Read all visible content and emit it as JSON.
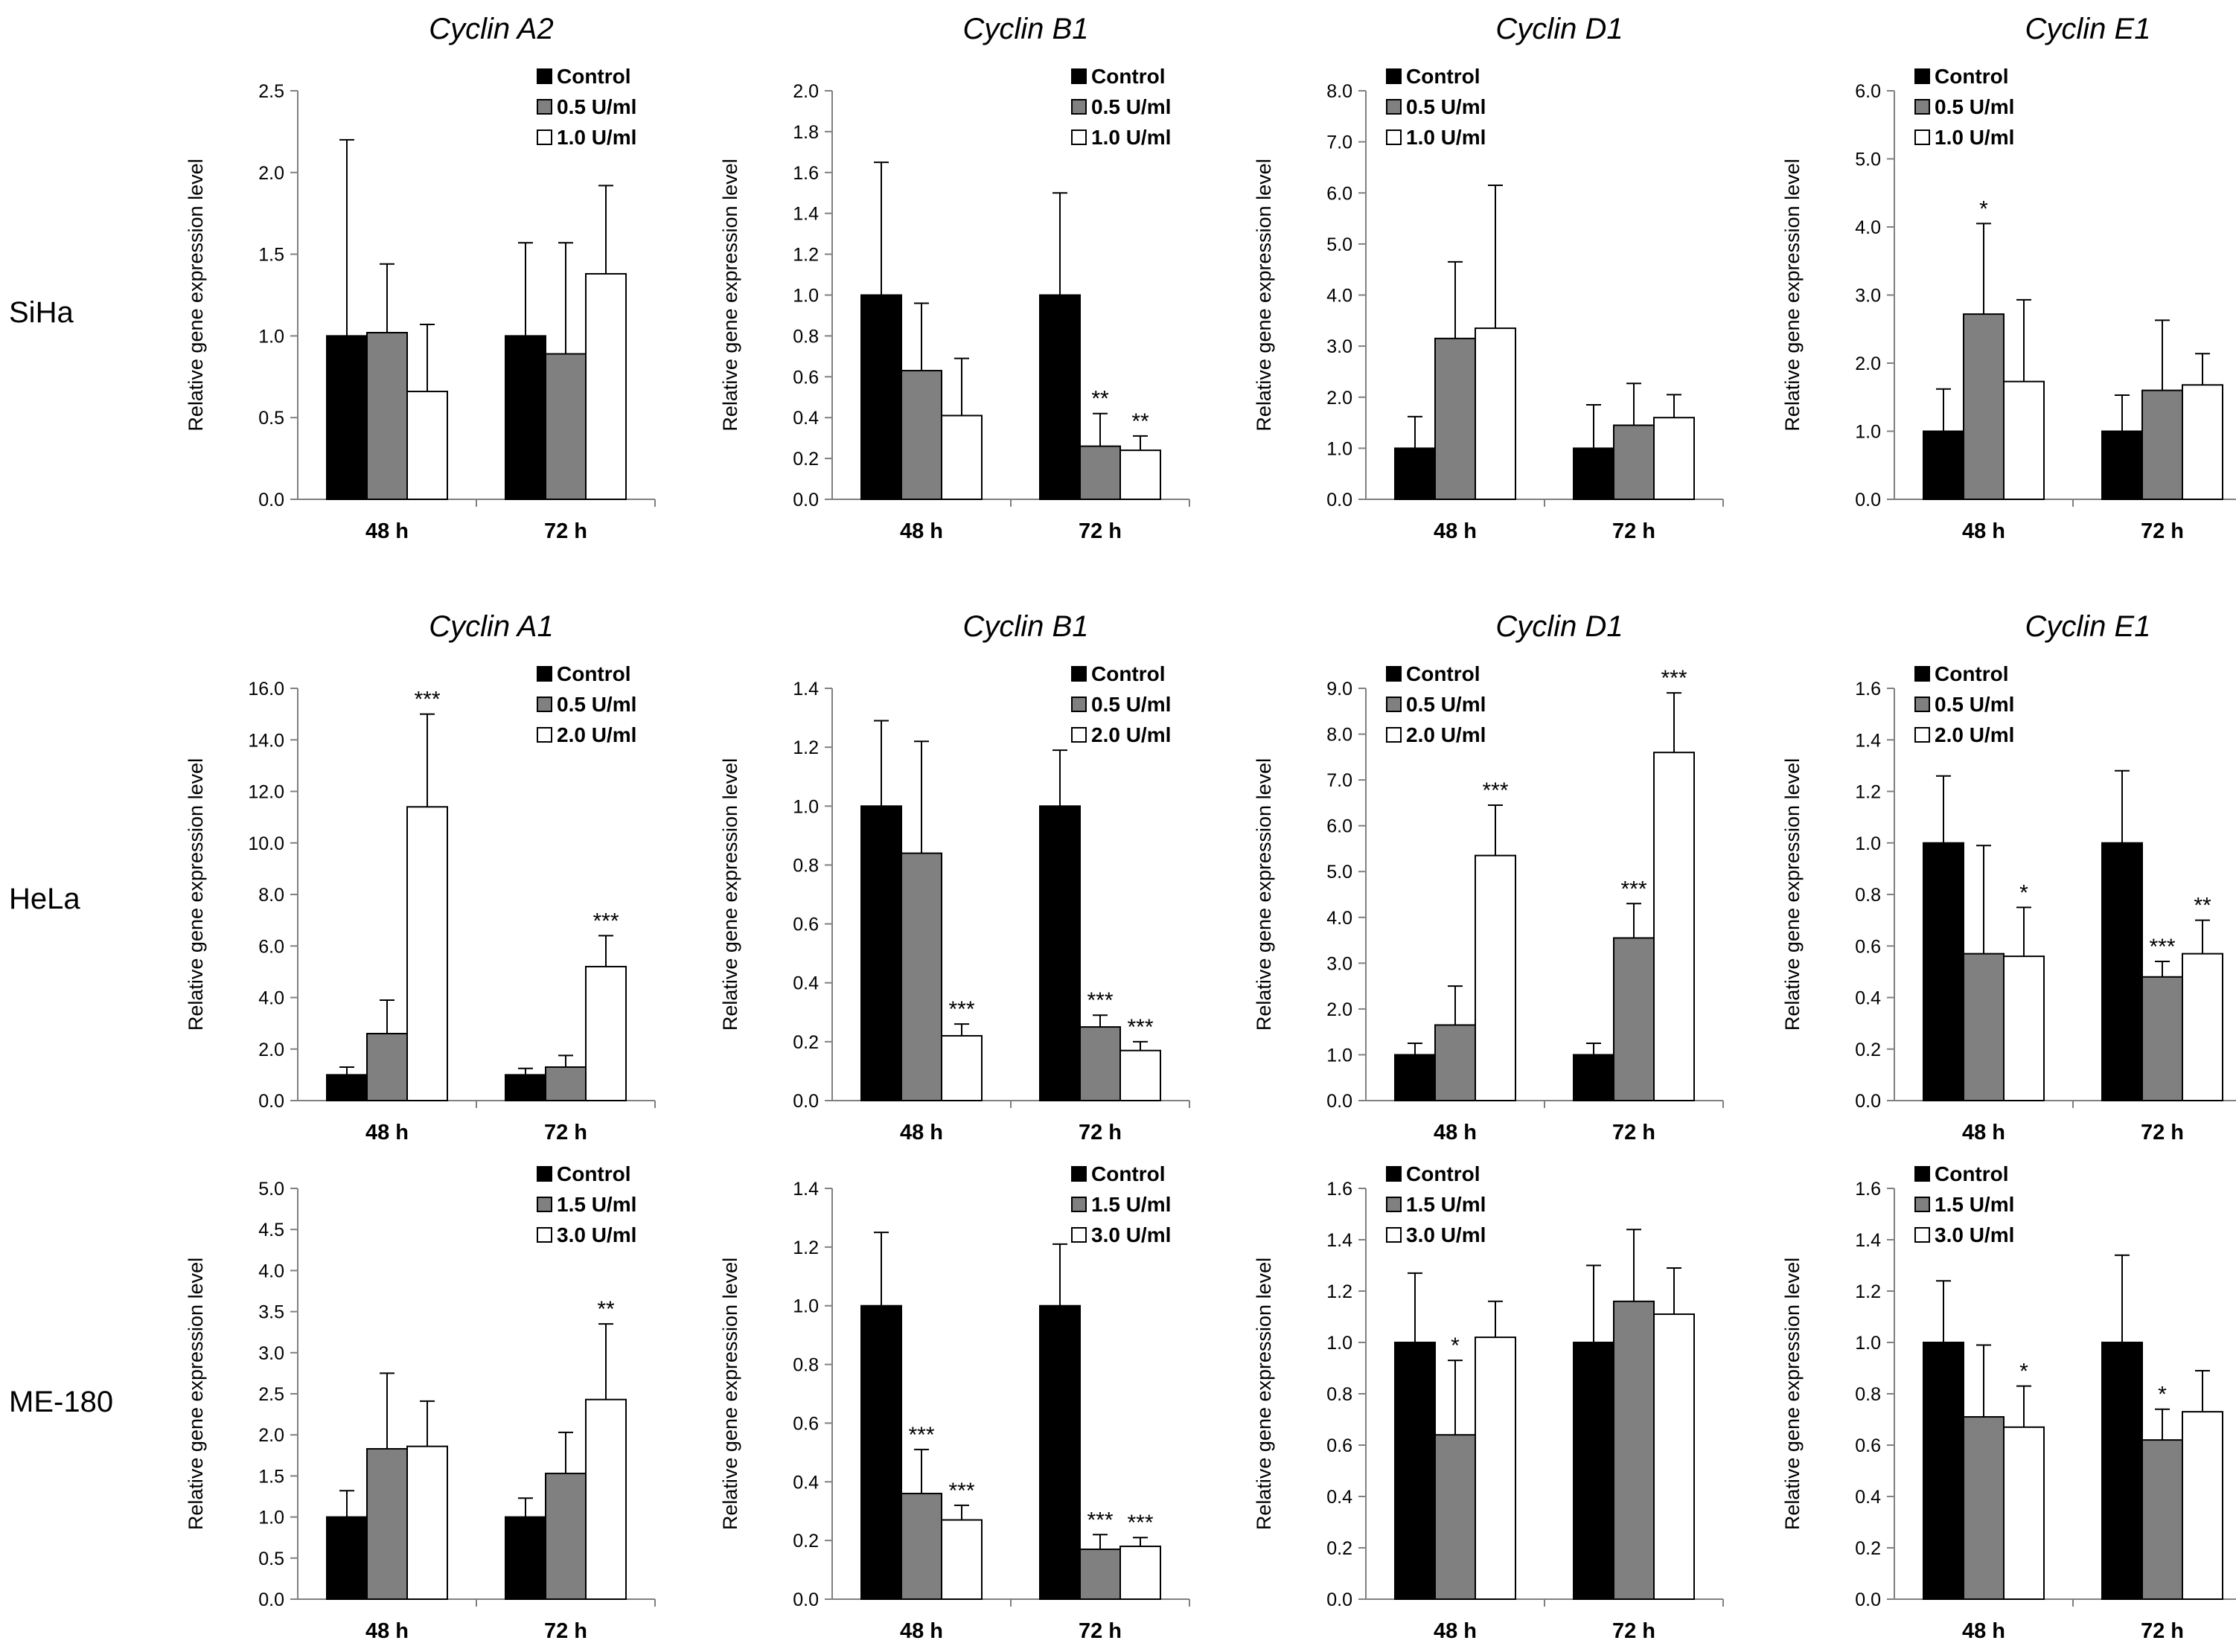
{
  "figure": {
    "ylabel": "Relative gene expression level",
    "timepoints": [
      "48 h",
      "72 h"
    ]
  },
  "row_labels": [
    "SiHa",
    "HeLa",
    "ME-180"
  ],
  "colors": {
    "control": "#000000",
    "low": "#808080",
    "high": "#ffffff",
    "edge": "#000000",
    "axis": "#808080"
  },
  "chart_data": [
    {
      "type": "bar",
      "row": "SiHa",
      "title": "Cyclin A2",
      "categories": [
        "48 h",
        "72 h"
      ],
      "ylabel": "Relative gene expression level",
      "ylim": [
        0,
        2.5
      ],
      "ytick_step": 0.5,
      "ytick_decimals": 1,
      "ytick_labels": [
        "0.0",
        "0.5",
        "1.0",
        "1.5",
        "2.0",
        "2.5"
      ],
      "series": [
        {
          "name": "Control",
          "values": [
            1.0,
            1.0
          ],
          "errors": [
            1.2,
            0.57
          ],
          "sig": [
            "",
            ""
          ]
        },
        {
          "name": "0.5 U/ml",
          "values": [
            1.02,
            0.89
          ],
          "errors": [
            0.42,
            0.68
          ],
          "sig": [
            "",
            ""
          ]
        },
        {
          "name": "1.0 U/ml",
          "values": [
            0.66,
            1.38
          ],
          "errors": [
            0.41,
            0.54
          ],
          "sig": [
            "",
            ""
          ]
        }
      ]
    },
    {
      "type": "bar",
      "row": "SiHa",
      "title": "Cyclin B1",
      "categories": [
        "48 h",
        "72 h"
      ],
      "ylabel": "Relative gene expression level",
      "ylim": [
        0,
        2.0
      ],
      "ytick_step": 0.2,
      "ytick_decimals": 1,
      "ytick_labels": [
        "0.0",
        "0.2",
        "0.4",
        "0.6",
        "0.8",
        "1.0",
        "1.2",
        "1.4",
        "1.6",
        "1.8",
        "2.0"
      ],
      "series": [
        {
          "name": "Control",
          "values": [
            1.0,
            1.0
          ],
          "errors": [
            0.65,
            0.5
          ],
          "sig": [
            "",
            ""
          ]
        },
        {
          "name": "0.5 U/ml",
          "values": [
            0.63,
            0.26
          ],
          "errors": [
            0.33,
            0.16
          ],
          "sig": [
            "",
            "**"
          ]
        },
        {
          "name": "1.0 U/ml",
          "values": [
            0.41,
            0.24
          ],
          "errors": [
            0.28,
            0.07
          ],
          "sig": [
            "",
            "**"
          ]
        }
      ]
    },
    {
      "type": "bar",
      "row": "SiHa",
      "title": "Cyclin D1",
      "categories": [
        "48 h",
        "72 h"
      ],
      "ylabel": "Relative gene expression level",
      "ylim": [
        0,
        8.0
      ],
      "ytick_step": 1.0,
      "ytick_decimals": 1,
      "ytick_labels": [
        "0.0",
        "1.0",
        "2.0",
        "3.0",
        "4.0",
        "5.0",
        "6.0",
        "7.0",
        "8.0"
      ],
      "series": [
        {
          "name": "Control",
          "values": [
            1.0,
            1.0
          ],
          "errors": [
            0.62,
            0.85
          ],
          "sig": [
            "",
            ""
          ]
        },
        {
          "name": "0.5 U/ml",
          "values": [
            3.15,
            1.45
          ],
          "errors": [
            1.5,
            0.82
          ],
          "sig": [
            "",
            ""
          ]
        },
        {
          "name": "1.0 U/ml",
          "values": [
            3.35,
            1.6
          ],
          "errors": [
            2.8,
            0.45
          ],
          "sig": [
            "",
            ""
          ]
        }
      ]
    },
    {
      "type": "bar",
      "row": "SiHa",
      "title": "Cyclin E1",
      "categories": [
        "48 h",
        "72 h"
      ],
      "ylabel": "Relative gene expression level",
      "ylim": [
        0,
        6.0
      ],
      "ytick_step": 1.0,
      "ytick_decimals": 1,
      "ytick_labels": [
        "0.0",
        "1.0",
        "2.0",
        "3.0",
        "4.0",
        "5.0",
        "6.0"
      ],
      "series": [
        {
          "name": "Control",
          "values": [
            1.0,
            1.0
          ],
          "errors": [
            0.62,
            0.53
          ],
          "sig": [
            "",
            ""
          ]
        },
        {
          "name": "0.5 U/ml",
          "values": [
            2.72,
            1.6
          ],
          "errors": [
            1.33,
            1.03
          ],
          "sig": [
            "*",
            ""
          ]
        },
        {
          "name": "1.0 U/ml",
          "values": [
            1.73,
            1.68
          ],
          "errors": [
            1.2,
            0.46
          ],
          "sig": [
            "",
            ""
          ]
        }
      ]
    },
    {
      "type": "bar",
      "row": "HeLa",
      "title": "Cyclin A1",
      "categories": [
        "48 h",
        "72 h"
      ],
      "ylabel": "Relative gene expression level",
      "ylim": [
        0,
        16.0
      ],
      "ytick_step": 2.0,
      "ytick_decimals": 1,
      "ytick_labels": [
        "0.0",
        "2.0",
        "4.0",
        "6.0",
        "8.0",
        "10.0",
        "12.0",
        "14.0",
        "16.0"
      ],
      "series": [
        {
          "name": "Control",
          "values": [
            1.0,
            1.0
          ],
          "errors": [
            0.3,
            0.25
          ],
          "sig": [
            "",
            ""
          ]
        },
        {
          "name": "0.5 U/ml",
          "values": [
            2.6,
            1.3
          ],
          "errors": [
            1.3,
            0.45
          ],
          "sig": [
            "",
            ""
          ]
        },
        {
          "name": "2.0 U/ml",
          "values": [
            11.4,
            5.2
          ],
          "errors": [
            3.6,
            1.2
          ],
          "sig": [
            "***",
            "***"
          ]
        }
      ]
    },
    {
      "type": "bar",
      "row": "HeLa",
      "title": "Cyclin B1",
      "categories": [
        "48 h",
        "72 h"
      ],
      "ylabel": "Relative gene expression level",
      "ylim": [
        0,
        1.4
      ],
      "ytick_step": 0.2,
      "ytick_decimals": 1,
      "ytick_labels": [
        "0.0",
        "0.2",
        "0.4",
        "0.6",
        "0.8",
        "1.0",
        "1.2",
        "1.4"
      ],
      "series": [
        {
          "name": "Control",
          "values": [
            1.0,
            1.0
          ],
          "errors": [
            0.29,
            0.19
          ],
          "sig": [
            "",
            ""
          ]
        },
        {
          "name": "0.5 U/ml",
          "values": [
            0.84,
            0.25
          ],
          "errors": [
            0.38,
            0.04
          ],
          "sig": [
            "",
            "***"
          ]
        },
        {
          "name": "2.0 U/ml",
          "values": [
            0.22,
            0.17
          ],
          "errors": [
            0.04,
            0.03
          ],
          "sig": [
            "***",
            "***"
          ]
        }
      ]
    },
    {
      "type": "bar",
      "row": "HeLa",
      "title": "Cyclin D1",
      "categories": [
        "48 h",
        "72 h"
      ],
      "ylabel": "Relative gene expression level",
      "ylim": [
        0,
        9.0
      ],
      "ytick_step": 1.0,
      "ytick_decimals": 1,
      "ytick_labels": [
        "0.0",
        "1.0",
        "2.0",
        "3.0",
        "4.0",
        "5.0",
        "6.0",
        "7.0",
        "8.0",
        "9.0"
      ],
      "series": [
        {
          "name": "Control",
          "values": [
            1.0,
            1.0
          ],
          "errors": [
            0.25,
            0.25
          ],
          "sig": [
            "",
            ""
          ]
        },
        {
          "name": "0.5 U/ml",
          "values": [
            1.65,
            3.55
          ],
          "errors": [
            0.85,
            0.75
          ],
          "sig": [
            "",
            "***"
          ]
        },
        {
          "name": "2.0 U/ml",
          "values": [
            5.35,
            7.6
          ],
          "errors": [
            1.1,
            1.3
          ],
          "sig": [
            "***",
            "***"
          ]
        }
      ]
    },
    {
      "type": "bar",
      "row": "HeLa",
      "title": "Cyclin E1",
      "categories": [
        "48 h",
        "72 h"
      ],
      "ylabel": "Relative gene expression level",
      "ylim": [
        0,
        1.6
      ],
      "ytick_step": 0.2,
      "ytick_decimals": 1,
      "ytick_labels": [
        "0.0",
        "0.2",
        "0.4",
        "0.6",
        "0.8",
        "1.0",
        "1.2",
        "1.4",
        "1.6"
      ],
      "series": [
        {
          "name": "Control",
          "values": [
            1.0,
            1.0
          ],
          "errors": [
            0.26,
            0.28
          ],
          "sig": [
            "",
            ""
          ]
        },
        {
          "name": "0.5 U/ml",
          "values": [
            0.57,
            0.48
          ],
          "errors": [
            0.42,
            0.06
          ],
          "sig": [
            "",
            "***"
          ]
        },
        {
          "name": "2.0 U/ml",
          "values": [
            0.56,
            0.57
          ],
          "errors": [
            0.19,
            0.13
          ],
          "sig": [
            "*",
            "**"
          ]
        }
      ]
    },
    {
      "type": "bar",
      "row": "ME-180",
      "title": "",
      "categories": [
        "48 h",
        "72 h"
      ],
      "ylabel": "Relative gene expression level",
      "ylim": [
        0,
        5.0
      ],
      "ytick_step": 0.5,
      "ytick_decimals": 1,
      "ytick_labels": [
        "0.0",
        "0.5",
        "1.0",
        "1.5",
        "2.0",
        "2.5",
        "3.0",
        "3.5",
        "4.0",
        "4.5",
        "5.0"
      ],
      "series": [
        {
          "name": "Control",
          "values": [
            1.0,
            1.0
          ],
          "errors": [
            0.32,
            0.23
          ],
          "sig": [
            "",
            ""
          ]
        },
        {
          "name": "1.5 U/ml",
          "values": [
            1.83,
            1.53
          ],
          "errors": [
            0.92,
            0.5
          ],
          "sig": [
            "",
            ""
          ]
        },
        {
          "name": "3.0 U/ml",
          "values": [
            1.86,
            2.43
          ],
          "errors": [
            0.55,
            0.92
          ],
          "sig": [
            "",
            "**"
          ]
        }
      ]
    },
    {
      "type": "bar",
      "row": "ME-180",
      "title": "",
      "categories": [
        "48 h",
        "72 h"
      ],
      "ylabel": "Relative gene expression level",
      "ylim": [
        0,
        1.4
      ],
      "ytick_step": 0.2,
      "ytick_decimals": 1,
      "ytick_labels": [
        "0.0",
        "0.2",
        "0.4",
        "0.6",
        "0.8",
        "1.0",
        "1.2",
        "1.4"
      ],
      "series": [
        {
          "name": "Control",
          "values": [
            1.0,
            1.0
          ],
          "errors": [
            0.25,
            0.21
          ],
          "sig": [
            "",
            ""
          ]
        },
        {
          "name": "1.5 U/ml",
          "values": [
            0.36,
            0.17
          ],
          "errors": [
            0.15,
            0.05
          ],
          "sig": [
            "***",
            "***"
          ]
        },
        {
          "name": "3.0 U/ml",
          "values": [
            0.27,
            0.18
          ],
          "errors": [
            0.05,
            0.03
          ],
          "sig": [
            "***",
            "***"
          ]
        }
      ]
    },
    {
      "type": "bar",
      "row": "ME-180",
      "title": "",
      "categories": [
        "48 h",
        "72 h"
      ],
      "ylabel": "Relative gene expression level",
      "ylim": [
        0,
        1.6
      ],
      "ytick_step": 0.2,
      "ytick_decimals": 1,
      "ytick_labels": [
        "0.0",
        "0.2",
        "0.4",
        "0.6",
        "0.8",
        "1.0",
        "1.2",
        "1.4",
        "1.6"
      ],
      "series": [
        {
          "name": "Control",
          "values": [
            1.0,
            1.0
          ],
          "errors": [
            0.27,
            0.3
          ],
          "sig": [
            "",
            ""
          ]
        },
        {
          "name": "1.5 U/ml",
          "values": [
            0.64,
            1.16
          ],
          "errors": [
            0.29,
            0.28
          ],
          "sig": [
            "*",
            ""
          ]
        },
        {
          "name": "3.0 U/ml",
          "values": [
            1.02,
            1.11
          ],
          "errors": [
            0.14,
            0.18
          ],
          "sig": [
            "",
            ""
          ]
        }
      ]
    },
    {
      "type": "bar",
      "row": "ME-180",
      "title": "",
      "categories": [
        "48 h",
        "72 h"
      ],
      "ylabel": "Relative gene expression level",
      "ylim": [
        0,
        1.6
      ],
      "ytick_step": 0.2,
      "ytick_decimals": 1,
      "ytick_labels": [
        "0.0",
        "0.2",
        "0.4",
        "0.6",
        "0.8",
        "1.0",
        "1.2",
        "1.4",
        "1.6"
      ],
      "series": [
        {
          "name": "Control",
          "values": [
            1.0,
            1.0
          ],
          "errors": [
            0.24,
            0.34
          ],
          "sig": [
            "",
            ""
          ]
        },
        {
          "name": "1.5 U/ml",
          "values": [
            0.71,
            0.62
          ],
          "errors": [
            0.28,
            0.12
          ],
          "sig": [
            "",
            "*"
          ]
        },
        {
          "name": "3.0 U/ml",
          "values": [
            0.67,
            0.73
          ],
          "errors": [
            0.16,
            0.16
          ],
          "sig": [
            "*",
            ""
          ]
        }
      ]
    }
  ]
}
